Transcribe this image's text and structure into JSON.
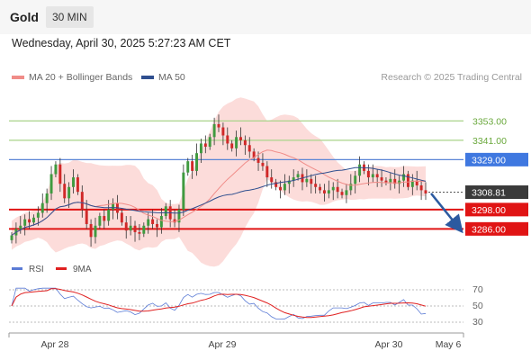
{
  "header": {
    "title": "Gold",
    "timeframe": "30 MIN"
  },
  "datetime": "Wednesday, April 30, 2025 5:27:23 AM CET",
  "legend": {
    "ma20": {
      "label": "MA 20 + Bollinger Bands",
      "color": "#f08c88"
    },
    "ma50": {
      "label": "MA 50",
      "color": "#2f4f8f"
    }
  },
  "research": "Research © 2025 Trading Central",
  "chart_data": [
    {
      "type": "candlestick",
      "title": "Gold",
      "x_tick_labels": [
        "Apr 28",
        "Apr 29",
        "Apr 30",
        "May 6"
      ],
      "levels": [
        {
          "value": 3353.0,
          "label": "3353.00",
          "kind": "resistance"
        },
        {
          "value": 3341.0,
          "label": "3341.00",
          "kind": "resistance"
        },
        {
          "value": 3329.0,
          "label": "3329.00",
          "kind": "pivot"
        },
        {
          "value": 3298.0,
          "label": "3298.00",
          "kind": "support"
        },
        {
          "value": 3286.0,
          "label": "3286.00",
          "kind": "support"
        }
      ],
      "last_price": {
        "value": 3308.81,
        "label": "3308.81"
      },
      "ylim": [
        3270,
        3375
      ],
      "series": [
        {
          "name": "MA 20 + Bollinger Bands",
          "color": "#f08c88"
        },
        {
          "name": "MA 50",
          "color": "#2f4f8f"
        }
      ],
      "forecast": {
        "direction": "down",
        "target": 3286.0
      },
      "close": [
        3282,
        3286,
        3288,
        3292,
        3290,
        3293,
        3296,
        3302,
        3308,
        3320,
        3326,
        3314,
        3305,
        3312,
        3318,
        3309,
        3298,
        3289,
        3281,
        3288,
        3294,
        3291,
        3298,
        3302,
        3296,
        3290,
        3285,
        3288,
        3284,
        3283,
        3288,
        3292,
        3289,
        3287,
        3294,
        3300,
        3292,
        3290,
        3298,
        3321,
        3328,
        3322,
        3333,
        3339,
        3337,
        3343,
        3351,
        3349,
        3344,
        3339,
        3336,
        3343,
        3341,
        3338,
        3334,
        3330,
        3327,
        3325,
        3318,
        3315,
        3312,
        3310,
        3314,
        3316,
        3318,
        3320,
        3315,
        3317,
        3314,
        3312,
        3310,
        3308,
        3310,
        3312,
        3309,
        3307,
        3310,
        3314,
        3319,
        3326,
        3322,
        3318,
        3320,
        3318,
        3316,
        3315,
        3317,
        3314,
        3316,
        3320,
        3312,
        3316,
        3313,
        3310,
        3308
      ]
    },
    {
      "type": "line",
      "title": "RSI",
      "ylim": [
        20,
        80
      ],
      "y_tick_labels": [
        "70",
        "50",
        "30"
      ],
      "series": [
        {
          "name": "RSI",
          "color": "#5b7bd5"
        },
        {
          "name": "9MA",
          "color": "#e02020"
        }
      ]
    }
  ]
}
